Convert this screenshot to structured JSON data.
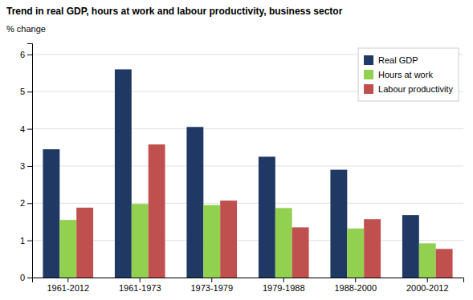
{
  "chart_data": {
    "type": "bar",
    "title": "Trend in real GDP, hours at work and labour productivity, business sector",
    "ylabel": "% change",
    "categories": [
      "1961-2012",
      "1961-1973",
      "1973-1979",
      "1979-1988",
      "1988-2000",
      "2000-2012"
    ],
    "series": [
      {
        "name": "Real GDP",
        "color": "#1f3864",
        "values": [
          3.45,
          5.6,
          4.05,
          3.25,
          2.9,
          1.68
        ]
      },
      {
        "name": "Hours at work",
        "color": "#92d050",
        "values": [
          1.55,
          1.98,
          1.95,
          1.87,
          1.32,
          0.92
        ]
      },
      {
        "name": "Labour productivity",
        "color": "#c0504d",
        "values": [
          1.88,
          3.58,
          2.07,
          1.35,
          1.57,
          0.77
        ]
      }
    ],
    "ylim": [
      0,
      6.3
    ],
    "yticks": [
      0,
      1,
      2,
      3,
      4,
      5,
      6
    ],
    "grid": true,
    "legend": "upper right"
  }
}
